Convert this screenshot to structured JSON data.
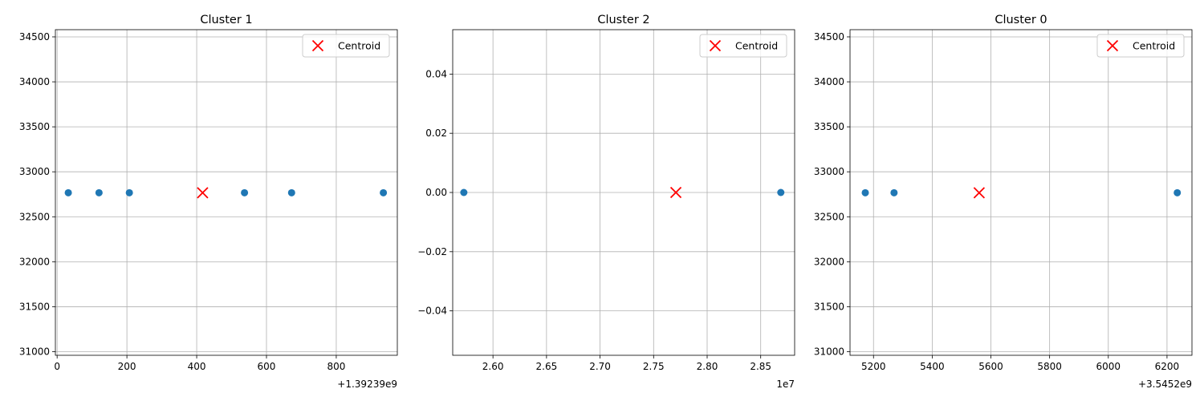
{
  "chart_data": [
    {
      "type": "scatter",
      "title": "Cluster 1",
      "xlabel": "",
      "ylabel": "",
      "x_offset_label": "+1.39239e9",
      "xlim": [
        -5,
        975
      ],
      "ylim": [
        30960,
        34580
      ],
      "xticks": [
        0,
        200,
        400,
        600,
        800
      ],
      "xtick_labels": [
        "0",
        "200",
        "400",
        "600",
        "800"
      ],
      "yticks": [
        31000,
        31500,
        32000,
        32500,
        33000,
        33500,
        34000,
        34500
      ],
      "ytick_labels": [
        "31000",
        "31500",
        "32000",
        "32500",
        "33000",
        "33500",
        "34000",
        "34500"
      ],
      "grid": true,
      "legend": {
        "location": "top-right",
        "entries": [
          "Centroid"
        ]
      },
      "series": [
        {
          "kind": "points",
          "color": "#1f77b4",
          "x": [
            32,
            120,
            207,
            537,
            672,
            935
          ],
          "y": [
            32767,
            32767,
            32767,
            32767,
            32767,
            32767
          ]
        },
        {
          "kind": "centroid",
          "name": "Centroid",
          "color": "#ff0000",
          "x": [
            417
          ],
          "y": [
            32767
          ]
        }
      ]
    },
    {
      "type": "scatter",
      "title": "Cluster 2",
      "xlabel": "",
      "ylabel": "",
      "x_offset_label": "1e7",
      "xlim": [
        2.5624,
        2.8817
      ],
      "ylim": [
        -0.055,
        0.055
      ],
      "xticks": [
        2.6,
        2.65,
        2.7,
        2.75,
        2.8,
        2.85
      ],
      "xtick_labels": [
        "2.60",
        "2.65",
        "2.70",
        "2.75",
        "2.80",
        "2.85"
      ],
      "yticks": [
        -0.04,
        -0.02,
        0.0,
        0.02,
        0.04
      ],
      "ytick_labels": [
        "−0.04",
        "−0.02",
        "0.00",
        "0.02",
        "0.04"
      ],
      "grid": true,
      "legend": {
        "location": "top-right",
        "entries": [
          "Centroid"
        ]
      },
      "series": [
        {
          "kind": "points",
          "color": "#1f77b4",
          "x": [
            2.5728,
            2.8688
          ],
          "y": [
            0,
            0
          ]
        },
        {
          "kind": "centroid",
          "name": "Centroid",
          "color": "#ff0000",
          "x": [
            2.7708
          ],
          "y": [
            0
          ]
        }
      ]
    },
    {
      "type": "scatter",
      "title": "Cluster 0",
      "xlabel": "",
      "ylabel": "",
      "x_offset_label": "+3.5452e9",
      "xlim": [
        5120,
        6285
      ],
      "ylim": [
        30960,
        34580
      ],
      "xticks": [
        5200,
        5400,
        5600,
        5800,
        6000,
        6200
      ],
      "xtick_labels": [
        "5200",
        "5400",
        "5600",
        "5800",
        "6000",
        "6200"
      ],
      "yticks": [
        31000,
        31500,
        32000,
        32500,
        33000,
        33500,
        34000,
        34500
      ],
      "ytick_labels": [
        "31000",
        "31500",
        "32000",
        "32500",
        "33000",
        "33500",
        "34000",
        "34500"
      ],
      "grid": true,
      "legend": {
        "location": "top-right",
        "entries": [
          "Centroid"
        ]
      },
      "series": [
        {
          "kind": "points",
          "color": "#1f77b4",
          "x": [
            5172,
            5270,
            6235
          ],
          "y": [
            32767,
            32767,
            32767
          ]
        },
        {
          "kind": "centroid",
          "name": "Centroid",
          "color": "#ff0000",
          "x": [
            5560
          ],
          "y": [
            32767
          ]
        }
      ]
    }
  ]
}
